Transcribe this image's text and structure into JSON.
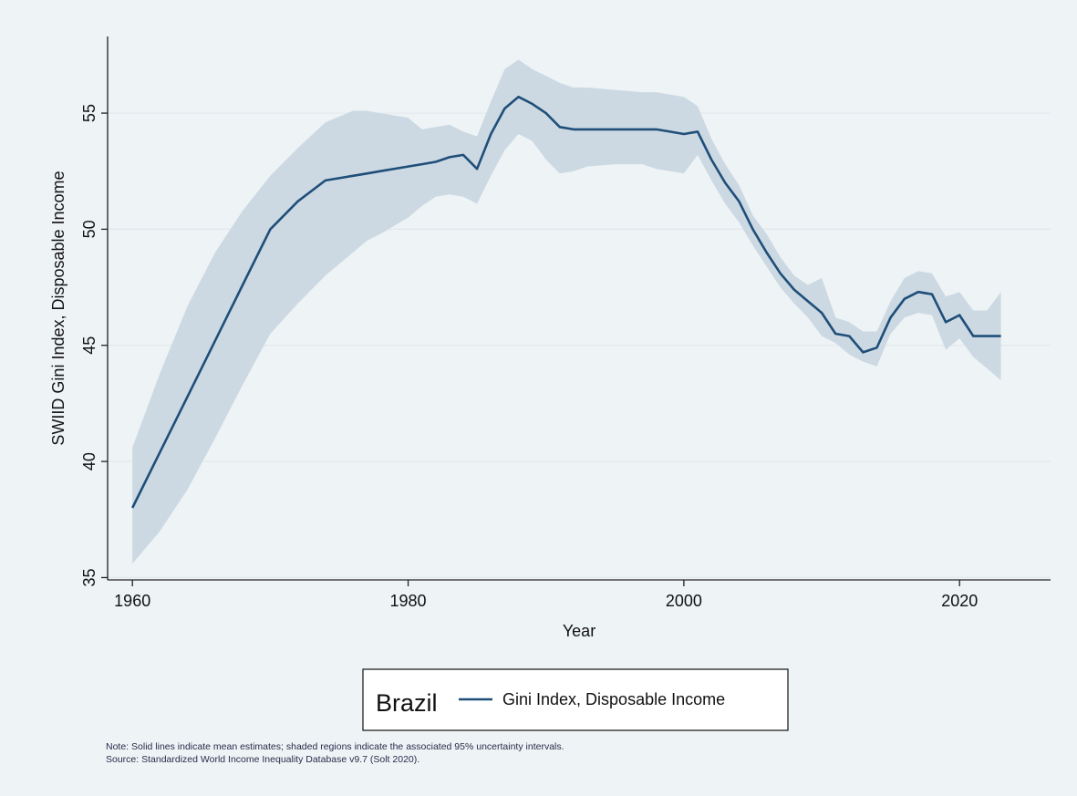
{
  "chart_data": {
    "type": "line",
    "xlabel": "Year",
    "ylabel": "SWIID Gini Index, Disposable Income",
    "xlim": [
      1958.2,
      2026.6
    ],
    "ylim": [
      34.9,
      58.3
    ],
    "xticks": [
      "1960",
      "1980",
      "2000",
      "2020"
    ],
    "yticks": [
      "35",
      "40",
      "45",
      "50",
      "55"
    ],
    "grid": true,
    "legend_position": "bottom",
    "legend": {
      "title": "Brazil",
      "entries": [
        "Gini Index, Disposable Income"
      ]
    },
    "series": [
      {
        "name": "Gini Index, Disposable Income",
        "color": "#1f4e79",
        "band_color": "#ccd9e3",
        "x": [
          1960,
          1962,
          1964,
          1966,
          1968,
          1970,
          1972,
          1974,
          1976,
          1977,
          1978,
          1980,
          1981,
          1982,
          1983,
          1984,
          1985,
          1986,
          1987,
          1988,
          1989,
          1990,
          1991,
          1992,
          1993,
          1995,
          1997,
          1998,
          1999,
          2000,
          2001,
          2002,
          2003,
          2004,
          2005,
          2006,
          2007,
          2008,
          2009,
          2010,
          2011,
          2012,
          2013,
          2014,
          2015,
          2016,
          2017,
          2018,
          2019,
          2020,
          2021,
          2022,
          2023
        ],
        "y": [
          38.0,
          40.4,
          42.8,
          45.2,
          47.6,
          50.0,
          51.2,
          52.1,
          52.3,
          52.4,
          52.5,
          52.7,
          52.8,
          52.9,
          53.1,
          53.2,
          52.6,
          54.1,
          55.2,
          55.7,
          55.4,
          55.0,
          54.4,
          54.3,
          54.3,
          54.3,
          54.3,
          54.3,
          54.2,
          54.1,
          54.2,
          53.0,
          52.0,
          51.2,
          50.0,
          49.0,
          48.1,
          47.4,
          46.9,
          46.4,
          45.5,
          45.4,
          44.7,
          44.9,
          46.2,
          47.0,
          47.3,
          47.2,
          46.0,
          46.3,
          45.4,
          45.4,
          45.4
        ],
        "lower": [
          35.6,
          37.0,
          38.8,
          41.0,
          43.3,
          45.5,
          46.8,
          48.0,
          49.0,
          49.5,
          49.8,
          50.5,
          51.0,
          51.4,
          51.5,
          51.4,
          51.1,
          52.3,
          53.4,
          54.1,
          53.8,
          53.0,
          52.4,
          52.5,
          52.7,
          52.8,
          52.8,
          52.6,
          52.5,
          52.4,
          53.2,
          52.1,
          51.1,
          50.3,
          49.3,
          48.4,
          47.5,
          46.8,
          46.2,
          45.4,
          45.1,
          44.6,
          44.3,
          44.1,
          45.5,
          46.2,
          46.4,
          46.3,
          44.8,
          45.3,
          44.5,
          44.0,
          43.5
        ],
        "upper": [
          40.6,
          43.8,
          46.7,
          49.0,
          50.8,
          52.3,
          53.5,
          54.6,
          55.1,
          55.1,
          55.0,
          54.8,
          54.3,
          54.4,
          54.5,
          54.2,
          54.0,
          55.5,
          56.9,
          57.3,
          56.9,
          56.6,
          56.3,
          56.1,
          56.1,
          56.0,
          55.9,
          55.9,
          55.8,
          55.7,
          55.3,
          53.9,
          52.8,
          51.9,
          50.6,
          49.8,
          48.8,
          48.0,
          47.6,
          47.9,
          46.2,
          46.0,
          45.6,
          45.6,
          46.9,
          47.9,
          48.2,
          48.1,
          47.1,
          47.3,
          46.5,
          46.5,
          47.3
        ]
      }
    ],
    "notes": [
      "Note: Solid lines indicate mean estimates; shaded regions indicate the associated 95% uncertainty intervals.",
      "Source: Standardized World Income Inequality Database v9.7 (Solt 2020)."
    ]
  }
}
